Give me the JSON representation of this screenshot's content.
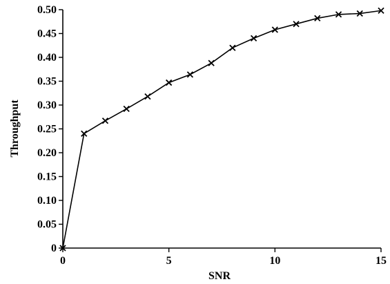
{
  "chart_data": {
    "type": "line",
    "title": "",
    "xlabel": "SNR",
    "ylabel": "Throughput",
    "xlim": [
      0,
      15
    ],
    "ylim": [
      0,
      0.5
    ],
    "grid": false,
    "x_ticks": [
      "0",
      "5",
      "10",
      "15"
    ],
    "x_tick_values": [
      0,
      5,
      10,
      15
    ],
    "y_ticks": [
      "0",
      "0.05",
      "0.10",
      "0.15",
      "0.20",
      "0.25",
      "0.30",
      "0.35",
      "0.40",
      "0.45",
      "0.50"
    ],
    "y_tick_values": [
      0,
      0.05,
      0.1,
      0.15,
      0.2,
      0.25,
      0.3,
      0.35,
      0.4,
      0.45,
      0.5
    ],
    "series": [
      {
        "marker": "x",
        "color": "#000000",
        "x": [
          0,
          1,
          2,
          3,
          4,
          5,
          6,
          7,
          8,
          9,
          10,
          11,
          12,
          13,
          14,
          15
        ],
        "y": [
          0.0,
          0.24,
          0.267,
          0.292,
          0.318,
          0.347,
          0.364,
          0.388,
          0.42,
          0.44,
          0.458,
          0.47,
          0.482,
          0.49,
          0.492,
          0.498
        ]
      }
    ]
  }
}
